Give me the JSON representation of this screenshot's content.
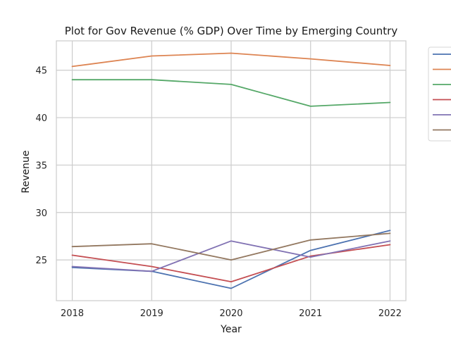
{
  "chart_data": {
    "type": "line",
    "title": "Plot for Gov Revenue (% GDP) Over Time by Emerging Country",
    "xlabel": "Year",
    "ylabel": "Revenue",
    "x": [
      2018,
      2019,
      2020,
      2021,
      2022
    ],
    "xticks": [
      "2018",
      "2019",
      "2020",
      "2021",
      "2022"
    ],
    "yticks": [
      25,
      30,
      35,
      40,
      45
    ],
    "ytick_labels": [
      "25",
      "30",
      "35",
      "40",
      "45"
    ],
    "xlim": [
      2017.8,
      2022.2
    ],
    "ylim": [
      20.7,
      48.1
    ],
    "grid": true,
    "legend": {
      "placement": "outside-top-right",
      "labels_visible": false
    },
    "series": [
      {
        "color": "#4c72b0",
        "values": [
          24.2,
          23.8,
          22.0,
          26.0,
          28.1
        ]
      },
      {
        "color": "#dd8452",
        "values": [
          45.4,
          46.5,
          46.8,
          46.2,
          45.5
        ]
      },
      {
        "color": "#55a868",
        "values": [
          44.0,
          44.0,
          43.5,
          41.2,
          41.6
        ]
      },
      {
        "color": "#c44e52",
        "values": [
          25.5,
          24.3,
          22.7,
          25.4,
          26.6
        ]
      },
      {
        "color": "#8172b3",
        "values": [
          24.3,
          23.8,
          27.0,
          25.3,
          27.0
        ]
      },
      {
        "color": "#937860",
        "values": [
          26.4,
          26.7,
          25.0,
          27.1,
          27.8
        ]
      }
    ]
  }
}
